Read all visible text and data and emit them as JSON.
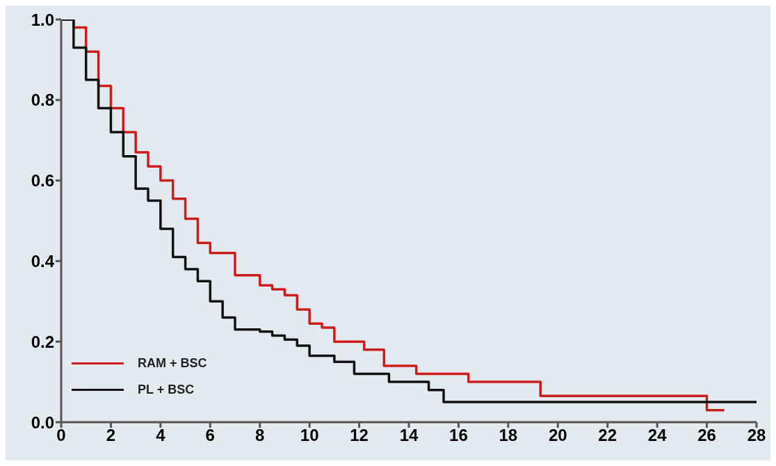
{
  "chart_data": {
    "type": "step",
    "xlim": [
      0,
      28
    ],
    "xticks": [
      0,
      2,
      4,
      6,
      8,
      10,
      12,
      14,
      16,
      18,
      20,
      22,
      24,
      26,
      28
    ],
    "ylim": [
      0,
      1
    ],
    "yticks": [
      {
        "value": 0,
        "label": "0.0"
      },
      {
        "value": 0.2,
        "label": "0.2"
      },
      {
        "value": 0.4,
        "label": "0.4"
      },
      {
        "value": 0.6,
        "label": "0.6"
      },
      {
        "value": 0.8,
        "label": "0.8"
      },
      {
        "value": 1,
        "label": "1.0"
      }
    ],
    "grid": false,
    "legend": "bottom left",
    "line_style": "solid",
    "marker": "none",
    "series": [
      {
        "name": "RAM + BSC",
        "color": "#cc1c1c",
        "x": [
          0,
          0.5,
          1,
          1.5,
          2,
          2.5,
          3,
          3.5,
          4,
          4.5,
          5,
          5.5,
          6,
          7,
          8,
          8.5,
          9,
          9.5,
          10,
          10.5,
          11,
          12.2,
          13,
          14.3,
          16.4,
          19.3,
          26,
          26.7
        ],
        "values": [
          1,
          0.98,
          0.92,
          0.835,
          0.78,
          0.72,
          0.67,
          0.635,
          0.6,
          0.555,
          0.505,
          0.445,
          0.42,
          0.365,
          0.34,
          0.33,
          0.315,
          0.28,
          0.245,
          0.235,
          0.2,
          0.18,
          0.14,
          0.12,
          0.1,
          0.065,
          0.03,
          0.03
        ]
      },
      {
        "name": "PL + BSC",
        "color": "#111111",
        "x": [
          0,
          0.5,
          1,
          1.5,
          2,
          2.5,
          3,
          3.5,
          4,
          4.5,
          5,
          5.5,
          6,
          6.5,
          7,
          8,
          8.5,
          9,
          9.5,
          10,
          11,
          11.8,
          13.2,
          14.8,
          15.4,
          28
        ],
        "values": [
          1,
          0.93,
          0.85,
          0.78,
          0.72,
          0.66,
          0.58,
          0.55,
          0.48,
          0.41,
          0.38,
          0.35,
          0.3,
          0.26,
          0.23,
          0.225,
          0.215,
          0.205,
          0.19,
          0.165,
          0.15,
          0.12,
          0.1,
          0.08,
          0.05,
          0.05
        ]
      }
    ]
  }
}
